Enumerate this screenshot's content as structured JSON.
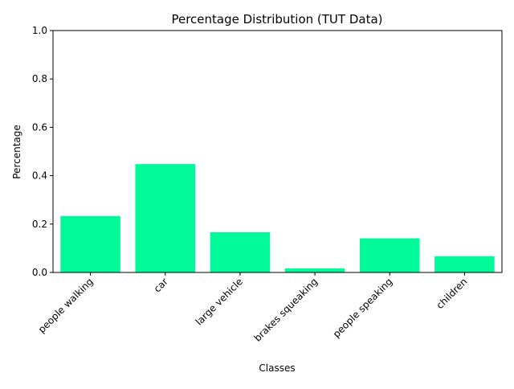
{
  "chart_data": {
    "type": "bar",
    "title": "Percentage Distribution (TUT Data)",
    "xlabel": "Classes",
    "ylabel": "Percentage",
    "categories": [
      "people walking",
      "car",
      "large vehicle",
      "brakes squeaking",
      "people speaking",
      "children"
    ],
    "values": [
      0.233,
      0.448,
      0.166,
      0.017,
      0.141,
      0.067
    ],
    "ylim": [
      0,
      1.0
    ],
    "yticks": [
      "0.0",
      "0.2",
      "0.4",
      "0.6",
      "0.8",
      "1.0"
    ],
    "bar_color": "#00fa9a",
    "grid": false,
    "legend": "none"
  }
}
